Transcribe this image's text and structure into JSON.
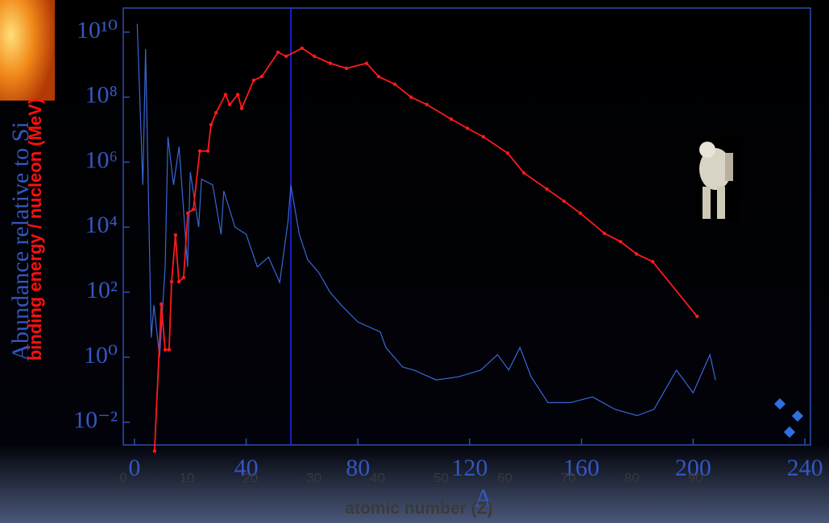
{
  "chart_data": {
    "type": "line",
    "ylabel": "Abundance relative to Si",
    "overlay_ylabel": "binding energy / nucleon (MeV)",
    "xlabel": "A",
    "x2label": "atomic number (Z)",
    "log_y": true,
    "xlim": [
      -4,
      242
    ],
    "xticks": [
      0,
      40,
      80,
      120,
      160,
      200,
      240
    ],
    "x2lim": [
      0,
      108.1
    ],
    "x2ticks": [
      0,
      10,
      20,
      30,
      40,
      50,
      60,
      70,
      80,
      90
    ],
    "ylim": [
      0.002,
      55000000000.0
    ],
    "yticks": [
      {
        "value": 10000000000.0,
        "label": "10¹⁰"
      },
      {
        "value": 100000000.0,
        "label": "10⁸"
      },
      {
        "value": 1000000.0,
        "label": "10⁶"
      },
      {
        "value": 10000.0,
        "label": "10⁴"
      },
      {
        "value": 100,
        "label": "10²"
      },
      {
        "value": 1,
        "label": "10⁰"
      },
      {
        "value": 0.01,
        "label": "10⁻²"
      }
    ],
    "vline": {
      "x": 56,
      "color": "#1a2cff"
    },
    "series": [
      {
        "color": "#3a66d6",
        "markers": false,
        "x": [
          1,
          3,
          4,
          6,
          7,
          9,
          11,
          12,
          14,
          16,
          19,
          20,
          23,
          24,
          28,
          31,
          32,
          36,
          40,
          44,
          48,
          52,
          55,
          56,
          59,
          62,
          66,
          70,
          74,
          80,
          88,
          90,
          96,
          100,
          108,
          116,
          124,
          130,
          134,
          138,
          142,
          148,
          156,
          164,
          172,
          180,
          186,
          194,
          200,
          206,
          208
        ],
        "values": [
          18000000000.0,
          200000.0,
          3000000000.0,
          4,
          40,
          1,
          600,
          6000000.0,
          200000.0,
          3000000.0,
          600,
          500000.0,
          10000.0,
          300000.0,
          200000.0,
          6000,
          130000.0,
          10000.0,
          6000,
          600,
          1200,
          200,
          16000.0,
          200000.0,
          6000,
          1000,
          400,
          100,
          40,
          12,
          6,
          2,
          0.5,
          0.4,
          0.2,
          0.25,
          0.4,
          1.2,
          0.4,
          2,
          0.25,
          0.04,
          0.04,
          0.06,
          0.025,
          0.016,
          0.025,
          0.4,
          0.08,
          1.2,
          0.2
        ]
      },
      {
        "color": "#ff1a1a",
        "markers": true,
        "x": [
          7.2,
          9.6,
          11.0,
          12.4,
          13.3,
          14.7,
          15.9,
          17.6,
          19.1,
          21.1,
          23.4,
          26.3,
          27.4,
          29.2,
          32.6,
          34.1,
          37.0,
          38.4,
          42.7,
          45.6,
          51.4,
          54.3,
          60.0,
          64.4,
          70.1,
          75.9,
          83.1,
          87.4,
          93.2,
          99.0,
          104.7,
          113.4,
          119.2,
          124.9,
          133.6,
          139.4,
          147.6,
          153.8,
          159.6,
          168.2,
          174.0,
          179.7,
          185.5,
          201.4
        ],
        "values": [
          0.0013,
          43,
          1.7,
          1.7,
          210,
          5700,
          210,
          280,
          27000,
          35000,
          2200000.0,
          2200000.0,
          14000000.0,
          33000000.0,
          120000000.0,
          59000000.0,
          120000000.0,
          45000000.0,
          330000000.0,
          430000000.0,
          2400000000.0,
          1800000000.0,
          3200000000.0,
          1800000000.0,
          1100000000.0,
          770000000.0,
          1100000000.0,
          430000000.0,
          250000000.0,
          100000000.0,
          59000000.0,
          21000000.0,
          11000000.0,
          6000000.0,
          1900000.0,
          470000.0,
          150000.0,
          63000.0,
          27000.0,
          6500,
          3600,
          1500,
          870,
          18
        ]
      }
    ]
  }
}
